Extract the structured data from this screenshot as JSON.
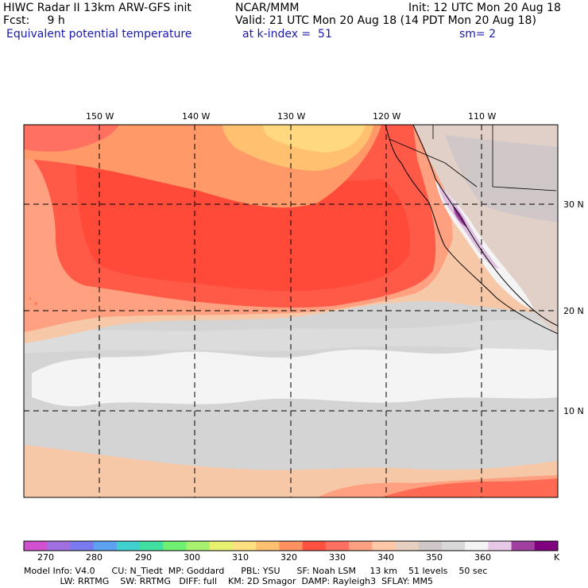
{
  "header": {
    "line1_left": "HIWC Radar II 13km ARW-GFS init",
    "line1_mid": "NCAR/MMM",
    "line1_right": "Init: 12 UTC Mon 20 Aug 18",
    "line2_left": "Fcst:     9 h",
    "line2_right": "Valid: 21 UTC Mon 20 Aug 18 (14 PDT Mon 20 Aug 18)",
    "line3_left": "Equivalent potential temperature",
    "line3_mid": "at k-index =  51",
    "line3_right": "sm= 2"
  },
  "map": {
    "lon_labels": [
      "150 W",
      "140 W",
      "130 W",
      "120 W",
      "110 W"
    ],
    "lat_labels": [
      "30 N",
      "20 N",
      "10 N"
    ]
  },
  "colorbar": {
    "ticks": [
      "270",
      "280",
      "290",
      "300",
      "310",
      "320",
      "330",
      "340",
      "350",
      "360",
      "K"
    ],
    "colors": [
      "#d050d0",
      "#a070e0",
      "#7a7af0",
      "#5ca0f0",
      "#40d0d0",
      "#40e0a0",
      "#70f070",
      "#a8f070",
      "#e8f070",
      "#ffe080",
      "#ffc070",
      "#ff9060",
      "#ff5040",
      "#ff7060",
      "#ffa080",
      "#ffc8a8",
      "#e8d0c0",
      "#d0c8c8",
      "#d8d8d8",
      "#f4f4f4",
      "#e8c8e8",
      "#a040a0",
      "#800080"
    ]
  },
  "footer": {
    "line1": "Model Info: V4.0      CU: N_Tiedt  MP: Goddard      PBL: YSU      SF: Noah LSM     13 km    51 levels    50 sec",
    "line2": "             LW: RRTMG    SW: RRTMG   DIFF: full    KM: 2D Smagor  DAMP: Rayleigh3  SFLAY: MM5"
  }
}
